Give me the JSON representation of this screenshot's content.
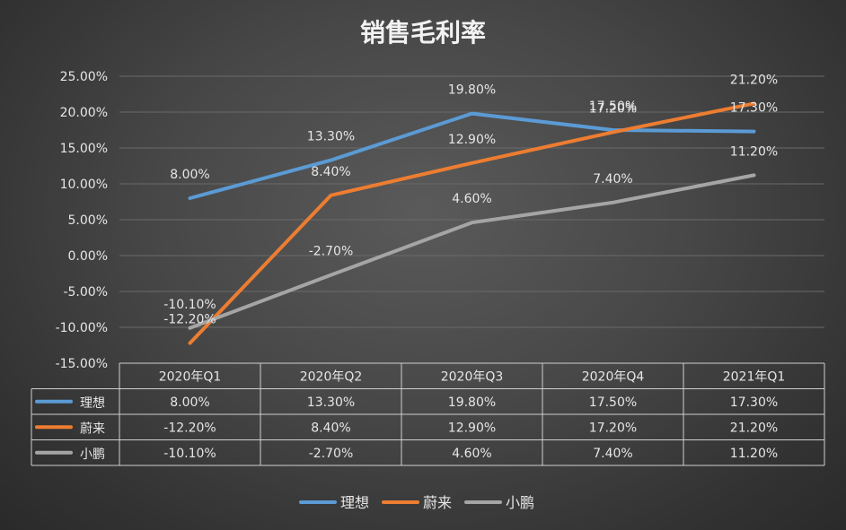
{
  "chart_data": {
    "type": "line",
    "title": "销售毛利率",
    "categories": [
      "2020年Q1",
      "2020年Q2",
      "2020年Q3",
      "2020年Q4",
      "2021年Q1"
    ],
    "series": [
      {
        "name": "理想",
        "color": "#5b9bd5",
        "values": [
          8.0,
          13.3,
          19.8,
          17.5,
          17.3
        ],
        "labels": [
          "8.00%",
          "13.30%",
          "19.80%",
          "17.50%",
          "17.30%"
        ]
      },
      {
        "name": "蔚来",
        "color": "#ed7d31",
        "values": [
          -12.2,
          8.4,
          12.9,
          17.2,
          21.2
        ],
        "labels": [
          "-12.20%",
          "8.40%",
          "12.90%",
          "17.20%",
          "21.20%"
        ]
      },
      {
        "name": "小鹏",
        "color": "#a5a5a5",
        "values": [
          -10.1,
          -2.7,
          4.6,
          7.4,
          11.2
        ],
        "labels": [
          "-10.10%",
          "-2.70%",
          "4.60%",
          "7.40%",
          "11.20%"
        ]
      }
    ],
    "y_ticks": [
      "25.00%",
      "20.00%",
      "15.00%",
      "10.00%",
      "5.00%",
      "0.00%",
      "-5.00%",
      "-10.00%",
      "-15.00%"
    ],
    "ylim": [
      -15,
      25
    ],
    "grid": true,
    "data_table": true,
    "legend_position": "bottom"
  }
}
